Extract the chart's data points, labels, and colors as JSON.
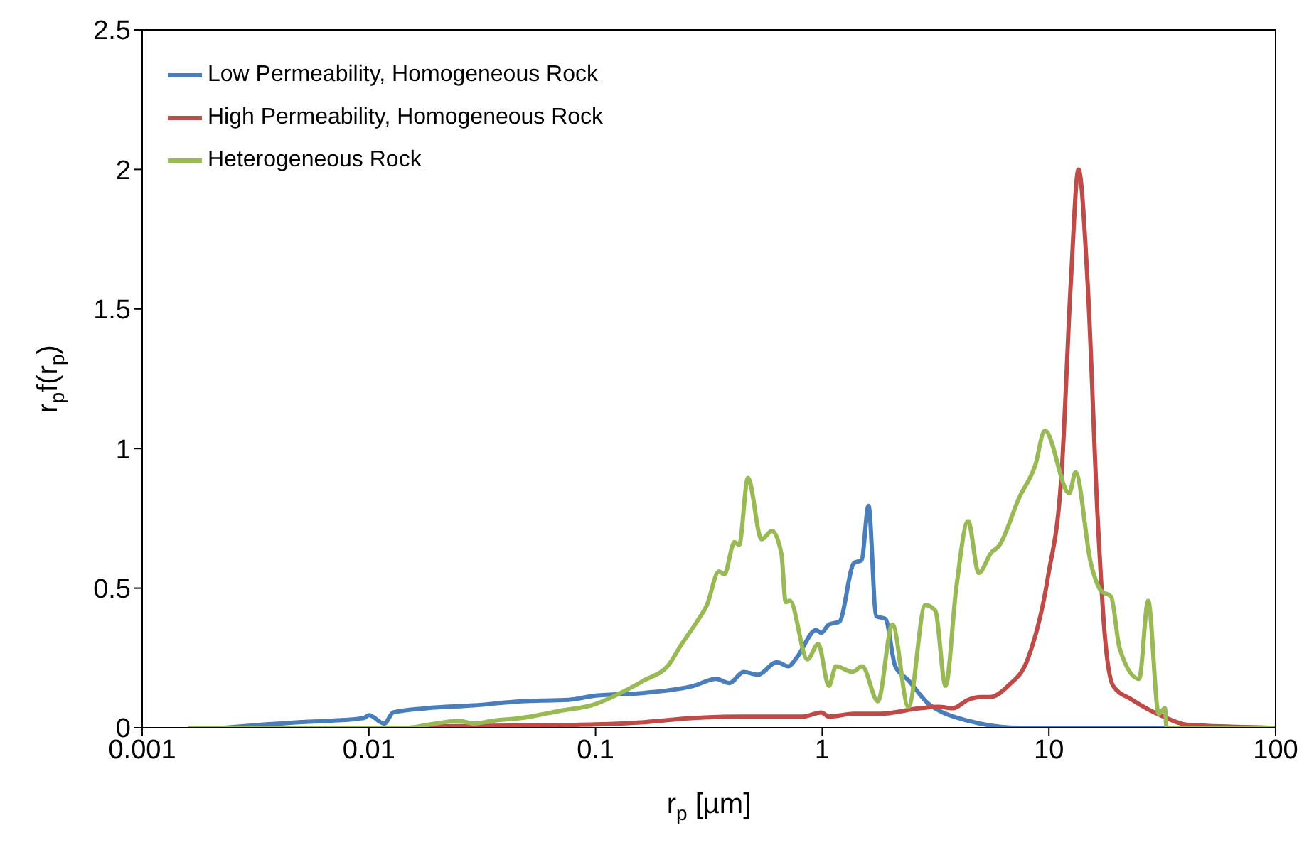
{
  "chart_data": {
    "type": "line",
    "xlabel": "r$_{p}$ [µm]",
    "ylabel": "r$_{p}$f(r$_{p}$)",
    "log": "x",
    "xlim": [
      0.001,
      100
    ],
    "xticks": [
      0.001,
      0.01,
      0.1,
      1,
      10,
      100
    ],
    "ylim": [
      0,
      2.5
    ],
    "yticks": [
      0,
      0.5,
      1,
      1.5,
      2,
      2.5
    ],
    "legend": "top left",
    "marker": "none",
    "line_style": "solid",
    "series": [
      {
        "name": "Low Permeability, Homogeneous Rock",
        "color": "#4a7ebb",
        "x": [
          0.0023,
          0.0033,
          0.0049,
          0.0068,
          0.0095,
          0.01,
          0.0117,
          0.0128,
          0.018,
          0.029,
          0.047,
          0.076,
          0.1,
          0.164,
          0.27,
          0.34,
          0.39,
          0.45,
          0.52,
          0.63,
          0.71,
          0.77,
          0.94,
          0.99,
          1.07,
          1.19,
          1.38,
          1.49,
          1.6,
          1.73,
          1.9,
          2.1,
          2.4,
          2.95,
          3.3,
          4.4,
          7.4,
          20,
          100
        ],
        "values": [
          0,
          0.01,
          0.02,
          0.025,
          0.035,
          0.045,
          0.015,
          0.055,
          0.07,
          0.08,
          0.095,
          0.1,
          0.115,
          0.125,
          0.15,
          0.175,
          0.16,
          0.2,
          0.19,
          0.235,
          0.22,
          0.25,
          0.35,
          0.34,
          0.37,
          0.38,
          0.59,
          0.6,
          0.795,
          0.4,
          0.39,
          0.22,
          0.17,
          0.085,
          0.06,
          0.025,
          0,
          0,
          0
        ]
      },
      {
        "name": "High Permeability, Homogeneous Rock",
        "color": "#be4b48",
        "x": [
          0.015,
          0.02,
          0.05,
          0.1,
          0.164,
          0.27,
          0.43,
          0.82,
          0.99,
          1.07,
          1.38,
          1.79,
          2.7,
          3.25,
          3.77,
          4.4,
          5.0,
          5.5,
          6.6,
          8.1,
          9.9,
          11.4,
          12.5,
          13.5,
          14.8,
          16.4,
          17.6,
          19.2,
          23.3,
          31,
          41.5,
          100
        ],
        "values": [
          0,
          0.005,
          0.008,
          0.012,
          0.02,
          0.035,
          0.04,
          0.04,
          0.055,
          0.04,
          0.05,
          0.05,
          0.07,
          0.075,
          0.07,
          0.1,
          0.11,
          0.11,
          0.15,
          0.25,
          0.54,
          0.925,
          1.6,
          2.0,
          1.6,
          0.755,
          0.34,
          0.15,
          0.1,
          0.045,
          0.01,
          0
        ]
      },
      {
        "name": "Heterogeneous Rock",
        "color": "#98b954",
        "x": [
          0.0016,
          0.015,
          0.018,
          0.025,
          0.029,
          0.035,
          0.047,
          0.069,
          0.1,
          0.122,
          0.164,
          0.21,
          0.24,
          0.28,
          0.31,
          0.35,
          0.37,
          0.41,
          0.43,
          0.47,
          0.54,
          0.6,
          0.66,
          0.69,
          0.72,
          0.86,
          0.96,
          1.07,
          1.15,
          1.36,
          1.5,
          1.76,
          2.04,
          2.4,
          2.85,
          3.15,
          3.5,
          3.9,
          4.4,
          4.9,
          5.6,
          6.0,
          7.4,
          8.7,
          9.6,
          12.3,
          13.1,
          15.3,
          17.0,
          18.8,
          20.5,
          25,
          27.4,
          30.5,
          32.5,
          33,
          100
        ],
        "values": [
          0,
          0,
          0.01,
          0.025,
          0.015,
          0.025,
          0.035,
          0.06,
          0.085,
          0.115,
          0.17,
          0.225,
          0.3,
          0.38,
          0.44,
          0.56,
          0.55,
          0.665,
          0.655,
          0.895,
          0.675,
          0.705,
          0.625,
          0.45,
          0.455,
          0.245,
          0.3,
          0.15,
          0.22,
          0.2,
          0.22,
          0.095,
          0.37,
          0.075,
          0.44,
          0.42,
          0.15,
          0.5,
          0.74,
          0.555,
          0.63,
          0.65,
          0.825,
          0.94,
          1.065,
          0.84,
          0.915,
          0.59,
          0.49,
          0.47,
          0.285,
          0.175,
          0.455,
          0.05,
          0.07,
          0,
          0
        ]
      }
    ]
  }
}
